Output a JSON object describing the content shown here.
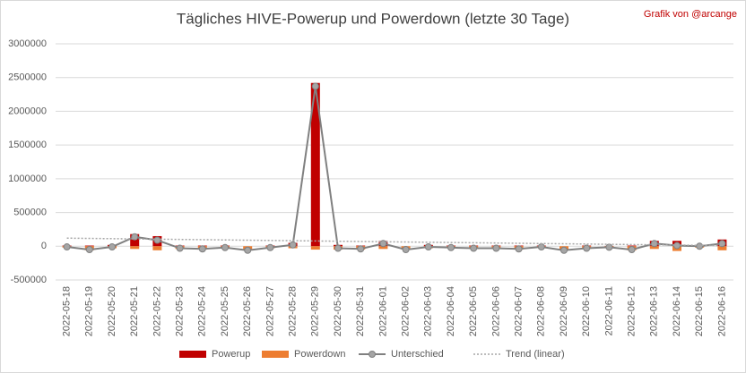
{
  "chart_data": {
    "type": "bar",
    "title": "Tägliches HIVE-Powerup und Powerdown (letzte 30 Tage)",
    "credit": "Grafik von @arcange",
    "categories": [
      "2022-05-18",
      "2022-05-19",
      "2022-05-20",
      "2022-05-21",
      "2022-05-22",
      "2022-05-23",
      "2022-05-24",
      "2022-05-25",
      "2022-05-26",
      "2022-05-27",
      "2022-05-28",
      "2022-05-29",
      "2022-05-30",
      "2022-05-31",
      "2022-06-01",
      "2022-06-02",
      "2022-06-03",
      "2022-06-04",
      "2022-06-05",
      "2022-06-06",
      "2022-06-07",
      "2022-06-08",
      "2022-06-09",
      "2022-06-10",
      "2022-06-11",
      "2022-06-12",
      "2022-06-13",
      "2022-06-14",
      "2022-06-15",
      "2022-06-16"
    ],
    "series": [
      {
        "name": "Powerup",
        "color": "#c00000",
        "kind": "bar",
        "values": [
          10000,
          10000,
          20000,
          180000,
          150000,
          10000,
          10000,
          10000,
          0,
          10000,
          50000,
          2420000,
          20000,
          10000,
          80000,
          0,
          20000,
          10000,
          10000,
          10000,
          10000,
          10000,
          0,
          10000,
          5000,
          10000,
          80000,
          80000,
          20000,
          100000
        ]
      },
      {
        "name": "Powerdown",
        "color": "#ed7d31",
        "kind": "bar",
        "values": [
          -20000,
          -60000,
          -30000,
          -40000,
          -60000,
          -40000,
          -50000,
          -30000,
          -60000,
          -30000,
          -30000,
          -50000,
          -50000,
          -50000,
          -40000,
          -50000,
          -30000,
          -30000,
          -40000,
          -40000,
          -50000,
          -20000,
          -60000,
          -40000,
          -20000,
          -60000,
          -40000,
          -70000,
          -20000,
          -60000
        ]
      },
      {
        "name": "Unterschied",
        "color": "#808080",
        "kind": "line",
        "values": [
          -10000,
          -50000,
          -10000,
          140000,
          90000,
          -30000,
          -40000,
          -20000,
          -60000,
          -20000,
          20000,
          2370000,
          -30000,
          -40000,
          40000,
          -50000,
          -10000,
          -20000,
          -30000,
          -30000,
          -40000,
          -10000,
          -60000,
          -30000,
          -15000,
          -50000,
          40000,
          10000,
          0,
          40000
        ]
      },
      {
        "name": "Trend (linear)",
        "color": "#a6a6a6",
        "kind": "trend",
        "values": [
          120000,
          116200,
          112400,
          108600,
          104800,
          101000,
          97200,
          93400,
          89600,
          85800,
          82000,
          78200,
          74400,
          70600,
          66800,
          63000,
          59200,
          55400,
          51600,
          47800,
          44000,
          40200,
          36400,
          32600,
          28800,
          25000,
          21200,
          17400,
          13600,
          9800
        ]
      }
    ],
    "ylim": [
      -500000,
      3000000
    ],
    "yticks": [
      -500000,
      0,
      500000,
      1000000,
      1500000,
      2000000,
      2500000,
      3000000
    ],
    "grid": true
  }
}
